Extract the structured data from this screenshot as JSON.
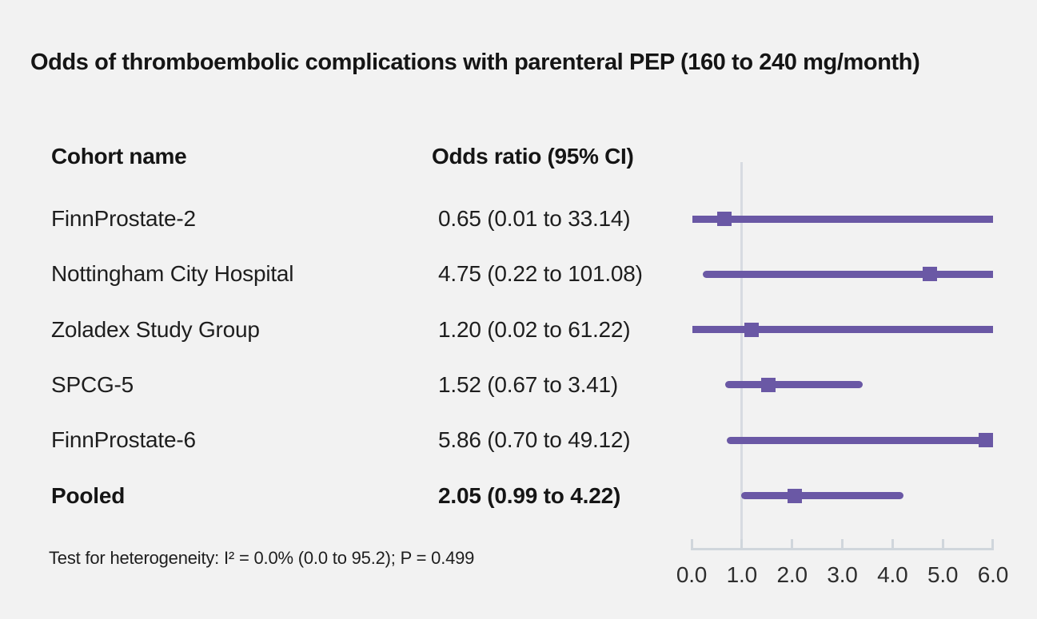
{
  "title": "Odds of thromboembolic complications with parenteral PEP (160 to 240 mg/month)",
  "table": {
    "columns": [
      "Cohort name",
      "Odds ratio (95% CI)"
    ],
    "rows": [
      {
        "name": "FinnProstate-2",
        "value": "0.65 (0.01 to 33.14)",
        "bold": false
      },
      {
        "name": "Nottingham City Hospital",
        "value": "4.75 (0.22 to 101.08)",
        "bold": false
      },
      {
        "name": "Zoladex Study Group",
        "value": "1.20 (0.02 to 61.22)",
        "bold": false
      },
      {
        "name": "SPCG-5",
        "value": "1.52 (0.67 to 3.41)",
        "bold": false
      },
      {
        "name": "FinnProstate-6",
        "value": "5.86 (0.70 to 49.12)",
        "bold": false
      },
      {
        "name": "Pooled",
        "value": "2.05 (0.99 to 4.22)",
        "bold": true
      }
    ]
  },
  "footnote": "Test for heterogeneity: I² = 0.0% (0.0 to 95.2); P = 0.499",
  "chart_data": {
    "type": "forest",
    "title": "Odds of thromboembolic complications with parenteral PEP (160 to 240 mg/month)",
    "xlim": [
      0.0,
      6.0
    ],
    "x_ticks": [
      0.0,
      1.0,
      2.0,
      3.0,
      4.0,
      5.0,
      6.0
    ],
    "x_tick_labels": [
      "0.0",
      "1.0",
      "2.0",
      "3.0",
      "4.0",
      "5.0",
      "6.0"
    ],
    "reference_line_x": 1.0,
    "series": [
      {
        "name": "FinnProstate-2",
        "estimate": 0.65,
        "ci_low": 0.01,
        "ci_high": 33.14,
        "pooled": false
      },
      {
        "name": "Nottingham City Hospital",
        "estimate": 4.75,
        "ci_low": 0.22,
        "ci_high": 101.08,
        "pooled": false
      },
      {
        "name": "Zoladex Study Group",
        "estimate": 1.2,
        "ci_low": 0.02,
        "ci_high": 61.22,
        "pooled": false
      },
      {
        "name": "SPCG-5",
        "estimate": 1.52,
        "ci_low": 0.67,
        "ci_high": 3.41,
        "pooled": false
      },
      {
        "name": "FinnProstate-6",
        "estimate": 5.86,
        "ci_low": 0.7,
        "ci_high": 49.12,
        "pooled": false
      },
      {
        "name": "Pooled",
        "estimate": 2.05,
        "ci_low": 0.99,
        "ci_high": 4.22,
        "pooled": true
      }
    ],
    "heterogeneity": "Test for heterogeneity: I² = 0.0% (0.0 to 95.2); P = 0.499",
    "colors": {
      "marker": "#6a58a5",
      "ci_line": "#6a58a5",
      "reference_line": "#d7dbe1",
      "axis": "#d0d6dc",
      "background": "#f2f2f2",
      "text": "#1e1e1e"
    }
  }
}
